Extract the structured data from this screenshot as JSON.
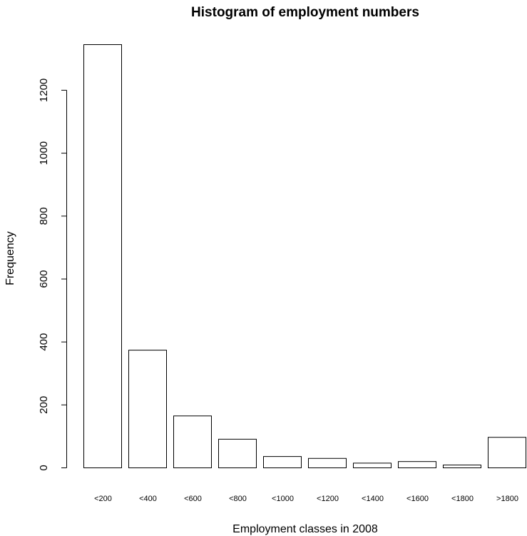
{
  "chart_data": {
    "type": "bar",
    "title": "Histogram of employment numbers",
    "xlabel": "Employment classes in 2008",
    "ylabel": "Frequency",
    "categories": [
      "<200",
      "<400",
      "<600",
      "<800",
      "<1000",
      "<1200",
      "<1400",
      "<1600",
      "<1800",
      ">1800"
    ],
    "values": [
      1345,
      374,
      165,
      91,
      36,
      30,
      15,
      20,
      9,
      97
    ],
    "ylim": [
      0,
      1345
    ],
    "yticks": [
      0,
      200,
      400,
      600,
      800,
      1000,
      1200
    ],
    "grid": false,
    "bar_fill": "#ffffff",
    "bar_stroke": "#000000"
  }
}
